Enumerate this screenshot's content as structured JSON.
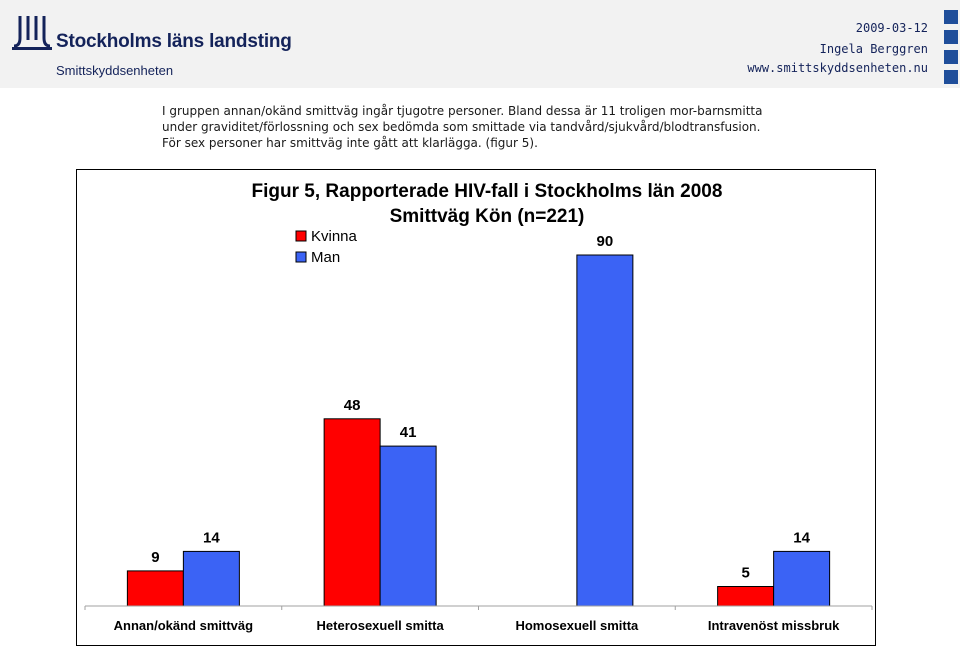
{
  "header": {
    "org_name": "Stockholms läns landsting",
    "unit_name": "Smittskyddsenheten",
    "date": "2009-03-12",
    "author": "Ingela Berggren",
    "website": "www.smittskyddsenheten.nu",
    "brand_color": "#14235a",
    "square_color": "#1f4e9a"
  },
  "body_text": [
    "I gruppen annan/okänd smittväg ingår tjugotre personer. Bland dessa är 11 troligen mor-barnsmitta",
    "under graviditet/förlossning och sex bedömda som smittade via tandvård/sjukvård/blodtransfusion.",
    "För sex personer har smittväg inte gått att klarlägga. (figur 5)."
  ],
  "chart_data": {
    "type": "bar",
    "title": "Figur 5, Rapporterade HIV-fall i Stockholms län 2008",
    "subtitle": "Smittväg Kön (n=221)",
    "categories": [
      "Annan/okänd smittväg",
      "Heterosexuell smitta",
      "Homosexuell smitta",
      "Intravenöst missbruk"
    ],
    "series": [
      {
        "name": "Kvinna",
        "color": "#ff0000",
        "values": [
          9,
          48,
          null,
          5
        ]
      },
      {
        "name": "Man",
        "color": "#3b63f5",
        "values": [
          14,
          41,
          90,
          14
        ]
      }
    ],
    "data_labels": [
      "9",
      "48",
      "",
      "5",
      "14",
      "41",
      "90",
      "14"
    ],
    "ylim": [
      0,
      100
    ],
    "legend_position": "top-left",
    "grid": false
  }
}
